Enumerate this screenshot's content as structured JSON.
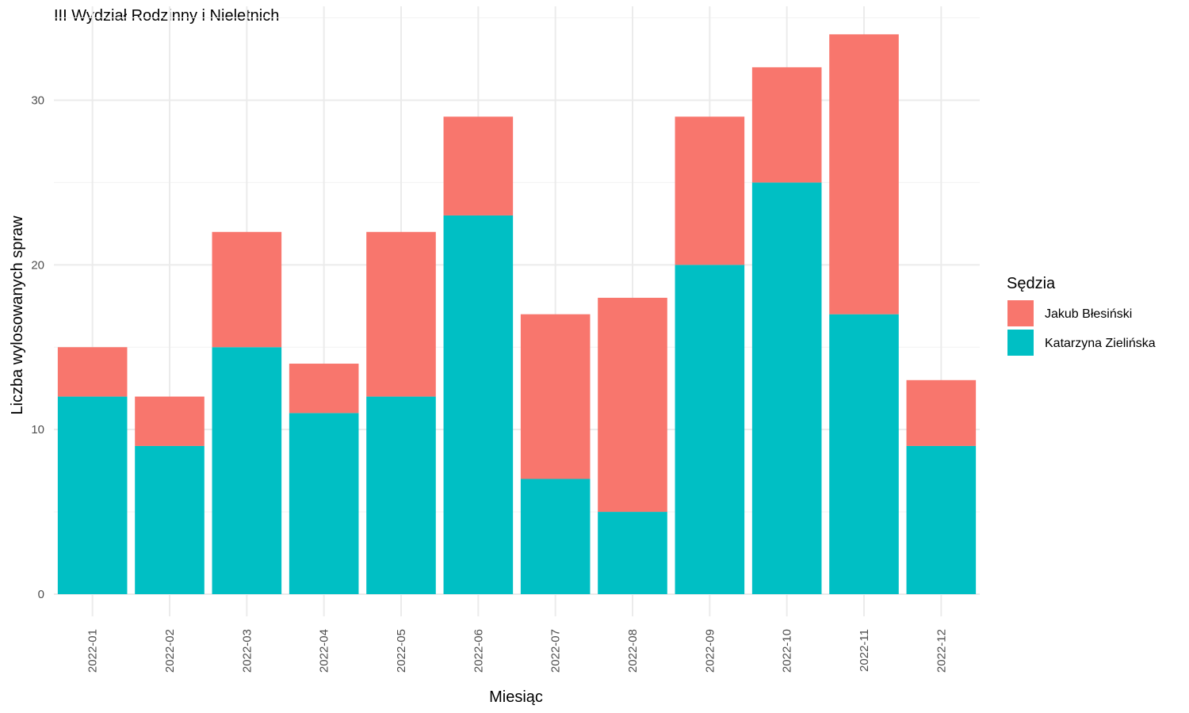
{
  "chart_data": {
    "type": "bar",
    "stacked": true,
    "title": "III Wydział Rodzinny i Nieletnich",
    "xlabel": "Miesiąc",
    "ylabel": "Liczba wylosowanych spraw",
    "ylim": [
      0,
      35.7
    ],
    "yticks": [
      0,
      10,
      20,
      30
    ],
    "grid": true,
    "legend_position": "right",
    "legend_title": "Sędzia",
    "categories": [
      "2022-01",
      "2022-02",
      "2022-03",
      "2022-04",
      "2022-05",
      "2022-06",
      "2022-07",
      "2022-08",
      "2022-09",
      "2022-10",
      "2022-11",
      "2022-12"
    ],
    "series": [
      {
        "name": "Katarzyna Zielińska",
        "color": "#00BFC4",
        "values": [
          12,
          9,
          15,
          11,
          12,
          23,
          7,
          5,
          20,
          25,
          17,
          9
        ]
      },
      {
        "name": "Jakub Błesiński",
        "color": "#F8766D",
        "values": [
          3,
          3,
          7,
          3,
          10,
          6,
          10,
          13,
          9,
          7,
          17,
          4
        ]
      }
    ],
    "legend_order": [
      "Jakub Błesiński",
      "Katarzyna Zielińska"
    ]
  }
}
